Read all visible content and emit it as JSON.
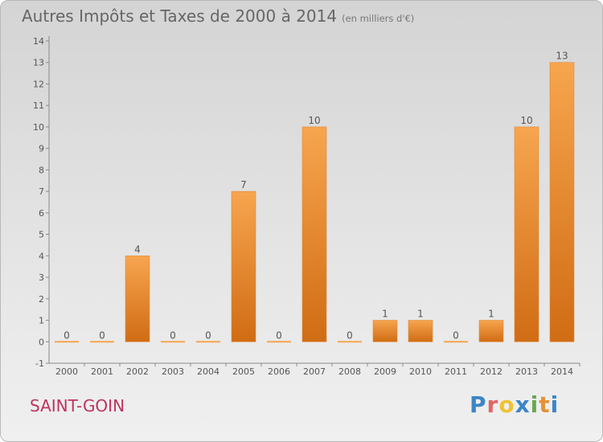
{
  "title": "Autres Impôts et Taxes de 2000 à 2014",
  "unit": "(en milliers d'€)",
  "location": "SAINT-GOIN",
  "logo": {
    "text": "Proxiti",
    "colors": [
      "#3d85c6",
      "#e06666",
      "#f1c232",
      "#3d85c6",
      "#6aa84f",
      "#e69138",
      "#3d85c6"
    ]
  },
  "colors": {
    "bar_light": "#f7a54f",
    "bar_dark": "#d06c14",
    "axis": "#8a8a8a",
    "text": "#555555"
  },
  "chart_data": {
    "type": "bar",
    "categories": [
      "2000",
      "2001",
      "2002",
      "2003",
      "2004",
      "2005",
      "2006",
      "2007",
      "2008",
      "2009",
      "2010",
      "2011",
      "2012",
      "2013",
      "2014"
    ],
    "values": [
      0,
      0,
      4,
      0,
      0,
      7,
      0,
      10,
      0,
      1,
      1,
      0,
      1,
      10,
      13
    ],
    "data_labels": [
      "0",
      "0",
      "4",
      "0",
      "0",
      "7",
      "0",
      "10",
      "0",
      "1",
      "1",
      "0",
      "1",
      "10",
      "13"
    ],
    "ylim": [
      -1,
      14
    ],
    "yticks": [
      -1,
      0,
      1,
      2,
      3,
      4,
      5,
      6,
      7,
      8,
      9,
      10,
      11,
      12,
      13,
      14
    ],
    "grid": false,
    "xlabel": "",
    "ylabel": ""
  }
}
